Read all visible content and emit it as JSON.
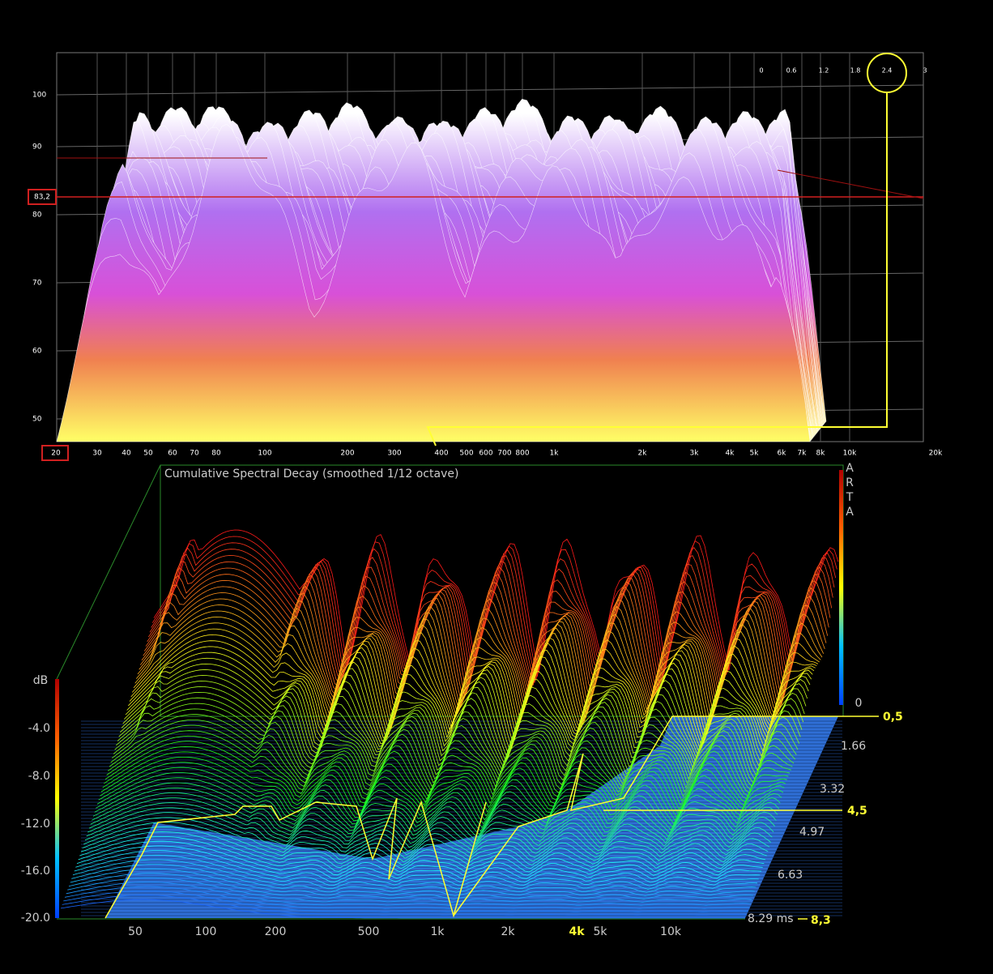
{
  "top": {
    "y_ticks": [
      "100",
      "90",
      "80",
      "70",
      "60",
      "50"
    ],
    "marker": "83,2",
    "x_ticks": [
      "20",
      "30",
      "40",
      "50",
      "60",
      "70",
      "80",
      "100",
      "200",
      "300",
      "400",
      "500",
      "600",
      "700",
      "800",
      "1k",
      "2k",
      "3k",
      "4k",
      "5k",
      "6k",
      "7k",
      "8k",
      "10k",
      "20k"
    ],
    "time_ticks": [
      "0",
      "0.6",
      "1.2",
      "1.8",
      "2.4",
      "3"
    ]
  },
  "bottom": {
    "title": "Cumulative Spectral Decay (smoothed 1/12 octave)",
    "brand": [
      "A",
      "R",
      "T",
      "A"
    ],
    "db_label": "dB",
    "db_ticks": [
      "-4.0",
      "-8.0",
      "-12.0",
      "-16.0",
      "-20.0"
    ],
    "zero": "0",
    "time_ticks": [
      "1.66",
      "3.32",
      "4.97",
      "6.63",
      "8.29 ms"
    ],
    "x_ticks": [
      "50",
      "100",
      "200",
      "500",
      "1k",
      "2k",
      "4k",
      "5k",
      "10k"
    ],
    "annotations": [
      "0,5",
      "4,5",
      "8,3"
    ]
  }
}
